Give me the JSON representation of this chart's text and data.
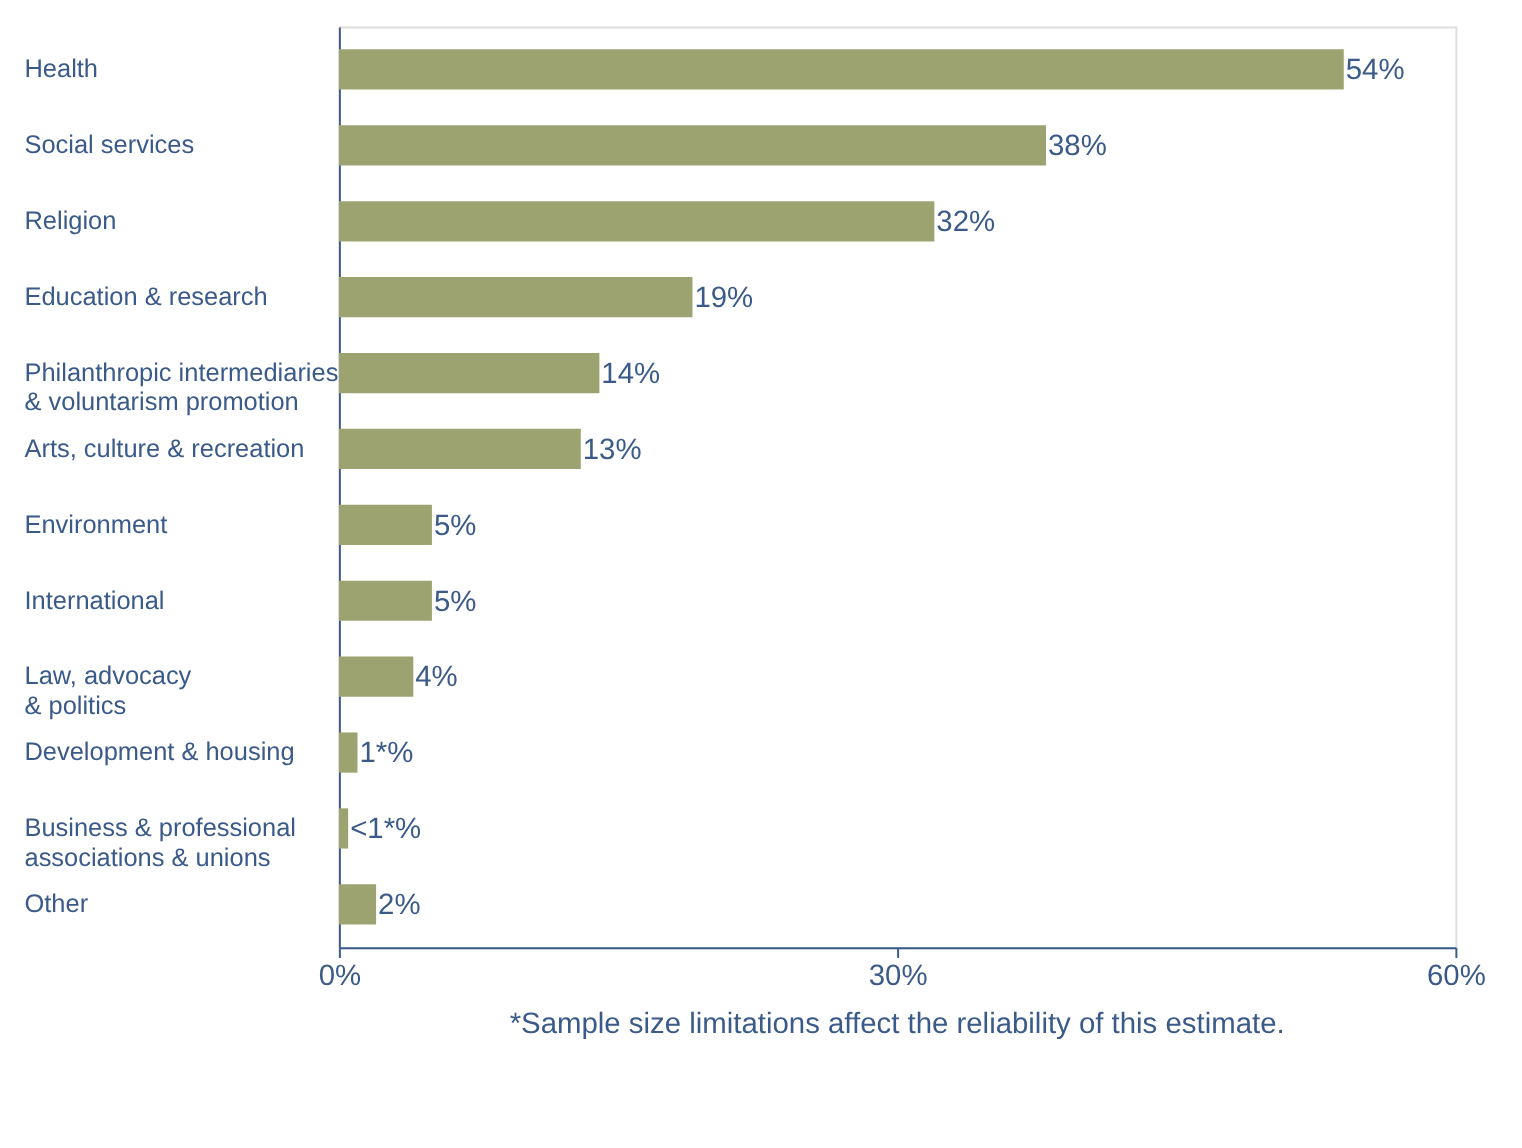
{
  "chart_data": {
    "type": "bar",
    "orientation": "horizontal",
    "categories": [
      "Health",
      "Social services",
      "Religion",
      "Education & research",
      "Philanthropic intermediaries\n& voluntarism promotion",
      "Arts, culture & recreation",
      "Environment",
      "International",
      "Law, advocacy\n& politics",
      "Development & housing",
      "Business & professional\nassociations & unions",
      "Other"
    ],
    "values": [
      54,
      38,
      32,
      19,
      14,
      13,
      5,
      5,
      4,
      1,
      0.5,
      2
    ],
    "value_labels": [
      "54%",
      "38%",
      "32%",
      "19%",
      "14%",
      "13%",
      "5%",
      "5%",
      "4%",
      "1*%",
      "<1*%",
      "2%"
    ],
    "color": "#9ca370",
    "xlim": [
      0,
      60
    ],
    "xticks": [
      {
        "value": 0,
        "label": "0%"
      },
      {
        "value": 30,
        "label": "30%"
      },
      {
        "value": 60,
        "label": "60%"
      }
    ],
    "grid": false,
    "annotations": [
      "*Sample size limitations affect the reliability of this estimate."
    ]
  }
}
